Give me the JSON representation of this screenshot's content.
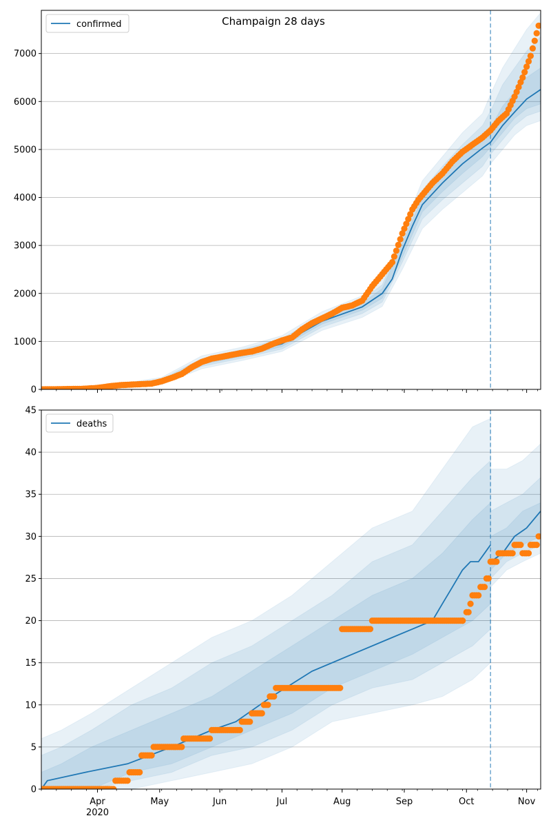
{
  "title": "Champaign 28 days",
  "colors": {
    "model": "#1f77b4",
    "observed": "#ff7f0e",
    "band": "#1f77b4",
    "grid": "#b0b0b0",
    "axis": "#000000"
  },
  "x_axis": {
    "month_labels": [
      "Apr",
      "May",
      "Jun",
      "Jul",
      "Aug",
      "Sep",
      "Oct",
      "Nov"
    ],
    "year_label": "2020",
    "forecast_start_day": 224
  },
  "chart_data": [
    {
      "type": "line",
      "name": "confirmed",
      "legend": "confirmed",
      "legend_position": "upper left",
      "grid": "y",
      "xlim": [
        0,
        249
      ],
      "ylim": [
        0,
        7900
      ],
      "yticks": [
        0,
        1000,
        2000,
        3000,
        4000,
        5000,
        6000,
        7000
      ],
      "xtick_days": [
        28,
        59,
        89,
        120,
        150,
        181,
        212,
        242
      ],
      "observed": {
        "x": [
          0,
          10,
          20,
          28,
          35,
          40,
          45,
          50,
          55,
          60,
          65,
          70,
          75,
          80,
          85,
          90,
          95,
          100,
          105,
          110,
          115,
          120,
          125,
          130,
          135,
          140,
          145,
          150,
          155,
          160,
          165,
          170,
          175,
          180,
          182,
          185,
          188,
          190,
          192,
          195,
          200,
          205,
          210,
          215,
          220,
          224,
          228,
          232,
          236,
          240,
          244,
          248
        ],
        "y": [
          0,
          5,
          10,
          30,
          70,
          90,
          100,
          110,
          120,
          170,
          240,
          320,
          460,
          570,
          640,
          680,
          720,
          760,
          790,
          850,
          940,
          1020,
          1080,
          1250,
          1380,
          1480,
          1580,
          1700,
          1750,
          1850,
          2150,
          2400,
          2650,
          3250,
          3450,
          3750,
          3950,
          4050,
          4150,
          4300,
          4500,
          4750,
          4950,
          5100,
          5250,
          5400,
          5600,
          5750,
          6100,
          6500,
          6950,
          7580
        ]
      },
      "model": {
        "x": [
          0,
          20,
          40,
          60,
          80,
          100,
          120,
          140,
          160,
          170,
          175,
          180,
          185,
          190,
          200,
          210,
          220,
          224,
          230,
          236,
          242,
          249
        ],
        "y": [
          0,
          5,
          60,
          160,
          560,
          740,
          950,
          1420,
          1720,
          2000,
          2300,
          2900,
          3400,
          3850,
          4300,
          4700,
          5030,
          5150,
          5500,
          5780,
          6050,
          6250
        ]
      },
      "bands": [
        {
          "x": [
            0,
            30,
            60,
            80,
            100,
            120,
            140,
            160,
            170,
            180,
            190,
            200,
            210,
            220,
            224,
            230,
            236,
            242,
            249
          ],
          "upper": [
            10,
            60,
            250,
            700,
            880,
            1120,
            1620,
            1950,
            2280,
            3300,
            4350,
            4850,
            5350,
            5750,
            6150,
            6700,
            7100,
            7500,
            7850
          ],
          "lower": [
            0,
            0,
            100,
            430,
            600,
            790,
            1230,
            1500,
            1730,
            2500,
            3350,
            3750,
            4100,
            4450,
            4700,
            5000,
            5300,
            5500,
            5600
          ]
        },
        {
          "x": [
            0,
            30,
            60,
            80,
            100,
            120,
            140,
            160,
            170,
            180,
            190,
            200,
            210,
            220,
            224,
            230,
            236,
            242,
            249
          ],
          "upper": [
            6,
            45,
            215,
            640,
            830,
            1060,
            1540,
            1870,
            2180,
            3150,
            4150,
            4650,
            5100,
            5500,
            5800,
            6350,
            6700,
            7050,
            7350
          ],
          "lower": [
            0,
            5,
            120,
            480,
            650,
            840,
            1300,
            1580,
            1820,
            2650,
            3550,
            3950,
            4300,
            4650,
            4900,
            5200,
            5500,
            5700,
            5800
          ]
        },
        {
          "x": [
            0,
            30,
            60,
            80,
            100,
            120,
            140,
            160,
            170,
            180,
            190,
            200,
            210,
            220,
            224,
            230,
            236,
            242,
            249
          ],
          "upper": [
            3,
            30,
            190,
            600,
            790,
            1010,
            1480,
            1800,
            2100,
            3050,
            4000,
            4480,
            4900,
            5250,
            5450,
            5900,
            6200,
            6500,
            6700
          ],
          "lower": [
            0,
            10,
            140,
            520,
            690,
            890,
            1360,
            1650,
            1900,
            2750,
            3700,
            4120,
            4500,
            4850,
            5050,
            5350,
            5650,
            5850,
            5950
          ]
        }
      ]
    },
    {
      "type": "line",
      "name": "deaths",
      "legend": "deaths",
      "legend_position": "upper left",
      "grid": "y",
      "xlim": [
        0,
        249
      ],
      "ylim": [
        0,
        45
      ],
      "yticks": [
        0,
        5,
        10,
        15,
        20,
        25,
        30,
        35,
        40,
        45
      ],
      "xtick_days": [
        28,
        59,
        89,
        120,
        150,
        181,
        212,
        242
      ],
      "observed": {
        "x": [
          0,
          31,
          37,
          44,
          50,
          56,
          71,
          85,
          90,
          96,
          100,
          103,
          105,
          108,
          111,
          114,
          117,
          125,
          150,
          155,
          165,
          170,
          175,
          180,
          185,
          190,
          195,
          200,
          205,
          210,
          210.1,
          212,
          214,
          215,
          217,
          219,
          222,
          224,
          226,
          228,
          230,
          232,
          234,
          236,
          238,
          240,
          244,
          246,
          248
        ],
        "y": [
          0,
          0,
          1,
          2,
          4,
          5,
          6,
          7,
          7,
          7,
          8,
          8,
          9,
          9,
          10,
          11,
          12,
          12,
          19,
          19,
          20,
          20,
          20,
          20,
          20,
          20,
          20,
          20,
          20,
          20,
          20,
          21,
          22,
          23,
          23,
          24,
          25,
          27,
          27,
          28,
          28,
          28,
          28,
          29,
          29,
          28,
          29,
          29,
          30
        ]
      },
      "model": {
        "x": [
          0,
          3,
          22,
          43,
          65,
          85,
          97,
          115,
          135,
          155,
          175,
          185,
          195,
          200,
          205,
          210,
          214,
          218,
          221,
          224,
          224.1,
          230,
          236,
          242,
          249
        ],
        "y": [
          0,
          1,
          2,
          3,
          5,
          7,
          8,
          11,
          14,
          16,
          18,
          19,
          20,
          22,
          24,
          26,
          27,
          27,
          28,
          29,
          27,
          28,
          30,
          31,
          33
        ]
      },
      "bands": [
        {
          "x": [
            0,
            10,
            25,
            45,
            65,
            85,
            105,
            125,
            145,
            165,
            185,
            200,
            215,
            224,
            224.1,
            232,
            240,
            249
          ],
          "upper": [
            6,
            7,
            9,
            12,
            15,
            18,
            20,
            23,
            27,
            31,
            33,
            38,
            43,
            44,
            38,
            38,
            39,
            41
          ],
          "lower": [
            0,
            0,
            0,
            0,
            1,
            2,
            3,
            5,
            8,
            9,
            10,
            11,
            13,
            15,
            24,
            26,
            27,
            28
          ]
        },
        {
          "x": [
            0,
            10,
            25,
            45,
            65,
            85,
            105,
            125,
            145,
            165,
            185,
            200,
            215,
            224,
            224.1,
            232,
            240,
            249
          ],
          "upper": [
            4,
            5,
            7,
            10,
            12,
            15,
            17,
            20,
            23,
            27,
            29,
            33,
            37,
            39,
            33,
            34,
            35,
            37
          ],
          "lower": [
            0,
            0,
            0,
            1,
            2,
            4,
            5,
            7,
            10,
            12,
            13,
            15,
            17,
            19,
            25,
            27,
            28,
            29
          ]
        },
        {
          "x": [
            0,
            10,
            25,
            45,
            65,
            85,
            105,
            125,
            145,
            165,
            185,
            200,
            215,
            224,
            224.1,
            232,
            240,
            249
          ],
          "upper": [
            2,
            3,
            5,
            7,
            9,
            11,
            14,
            17,
            20,
            23,
            25,
            28,
            32,
            34,
            30,
            31,
            33,
            34
          ],
          "lower": [
            0,
            0,
            0,
            2,
            3,
            5,
            7,
            9,
            12,
            14,
            16,
            18,
            20,
            22,
            26,
            28,
            29,
            30
          ]
        }
      ]
    }
  ]
}
